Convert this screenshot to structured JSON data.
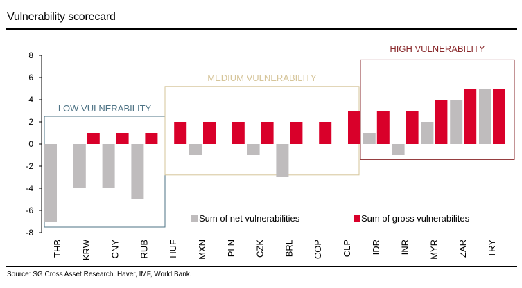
{
  "header": {
    "title": "Vulnerability scorecard"
  },
  "footer": {
    "source": "Source: SG Cross Asset Research. Haver, IMF, World Bank."
  },
  "chart_data": {
    "type": "bar",
    "title": "",
    "xlabel": "",
    "ylabel": "",
    "ylim": [
      -8,
      8
    ],
    "yticks": [
      8,
      6,
      4,
      2,
      0,
      -2,
      -4,
      -6,
      -8
    ],
    "grid": false,
    "legend_position": "bottom-right",
    "categories": [
      "THB",
      "KRW",
      "CNY",
      "RUB",
      "HUF",
      "MXN",
      "PLN",
      "CZK",
      "BRL",
      "COP",
      "CLP",
      "IDR",
      "INR",
      "MYR",
      "ZAR",
      "TRY"
    ],
    "series": [
      {
        "name": "Sum of net vulnerabilities",
        "color": "#bfbcbd",
        "values": [
          -7,
          -4,
          -4,
          -5,
          0,
          -1,
          0,
          -1,
          -3,
          0,
          0,
          1,
          -1,
          2,
          4,
          5
        ]
      },
      {
        "name": "Sum of gross vulnerabilites",
        "color": "#d9002a",
        "values": [
          0,
          1,
          1,
          1,
          2,
          2,
          2,
          2,
          2,
          2,
          3,
          3,
          3,
          4,
          5,
          5
        ]
      }
    ],
    "groups": [
      {
        "label": "LOW VULNERABILITY",
        "color": "#4e7385",
        "first_category": "THB",
        "last_category": "RUB",
        "y_range": [
          -7.5,
          2.5
        ]
      },
      {
        "label": "MEDIUM VULNERABILITY",
        "color": "#d6c59a",
        "first_category": "HUF",
        "last_category": "CLP",
        "y_range": [
          -2.8,
          5.2
        ]
      },
      {
        "label": "HIGH VULNERABILITY",
        "color": "#8a2a2c",
        "first_category": "IDR",
        "last_category": "TRY",
        "y_range": [
          -1.4,
          7.6
        ]
      }
    ]
  }
}
